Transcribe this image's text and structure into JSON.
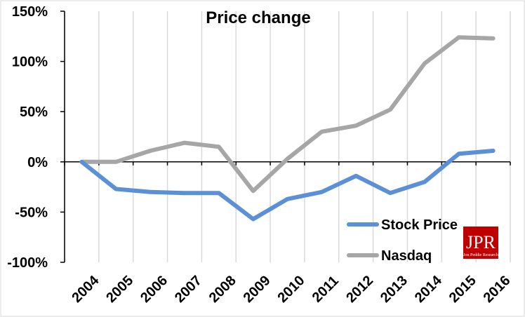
{
  "chart_data": {
    "type": "line",
    "title": "Price change",
    "xlabel": "",
    "ylabel": "",
    "categories": [
      "2004",
      "2005",
      "2006",
      "2007",
      "2008",
      "2009",
      "2010",
      "2011",
      "2012",
      "2013",
      "2014",
      "2015",
      "2016"
    ],
    "y_ticks": [
      "150%",
      "100%",
      "50%",
      "0%",
      "-50%",
      "-100%"
    ],
    "ylim": [
      -100,
      150
    ],
    "grid": "vertical",
    "legend_position": "bottom-right",
    "series": [
      {
        "name": "Stock Price",
        "color": "#5b8fd6",
        "values": [
          0,
          -27,
          -30,
          -31,
          -31,
          -57,
          -37,
          -30,
          -14,
          -31,
          -20,
          8,
          11
        ]
      },
      {
        "name": "Nasdaq",
        "color": "#a6a6a6",
        "values": [
          0,
          0,
          11,
          19,
          15,
          -29,
          3,
          30,
          36,
          52,
          98,
          124,
          123
        ]
      }
    ]
  },
  "logo": {
    "name": "jpr-logo",
    "text": "JPR",
    "subtext": "Jon Peddie Research",
    "color": "#c00000"
  }
}
